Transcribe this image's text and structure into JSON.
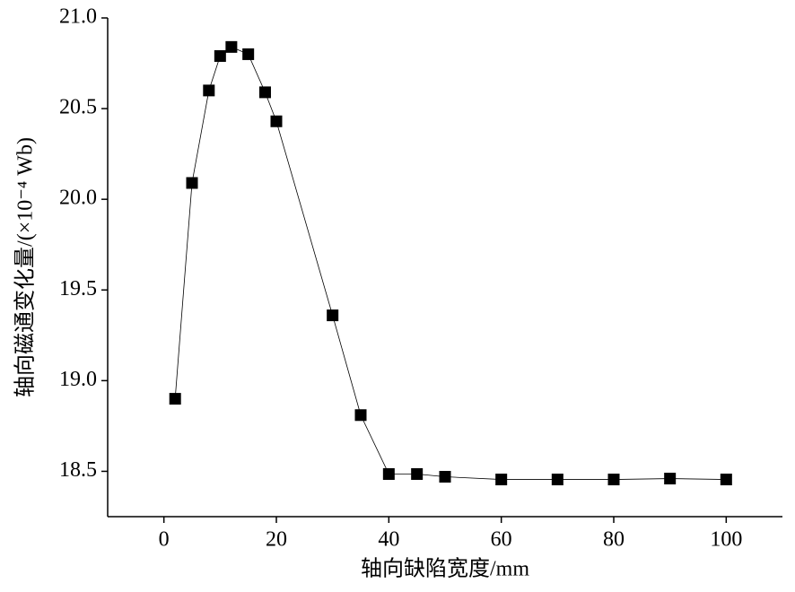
{
  "chart_data": {
    "type": "line",
    "xlabel": "轴向缺陷宽度/mm",
    "ylabel": "轴向磁通变化量/(×10⁻⁴ Wb)",
    "x": [
      2,
      5,
      8,
      10,
      12,
      15,
      18,
      20,
      30,
      35,
      40,
      45,
      50,
      60,
      70,
      80,
      90,
      100
    ],
    "series": [
      {
        "color": "#000000",
        "values": [
          18.9,
          20.09,
          20.6,
          20.79,
          20.84,
          20.8,
          20.59,
          20.43,
          19.36,
          18.81,
          18.485,
          18.485,
          18.47,
          18.455,
          18.455,
          18.455,
          18.46,
          18.455
        ]
      }
    ],
    "xlim": [
      -10,
      110
    ],
    "xticks": [
      0,
      20,
      40,
      60,
      80,
      100
    ],
    "ylim": [
      18.25,
      21.0
    ],
    "yticks": [
      {
        "value": 18.5,
        "label": "18.5"
      },
      {
        "value": 19,
        "label": "19.0"
      },
      19.5,
      {
        "value": 20,
        "label": "20.0"
      },
      20.5,
      {
        "value": 21,
        "label": "21.0"
      }
    ],
    "grid": false
  }
}
